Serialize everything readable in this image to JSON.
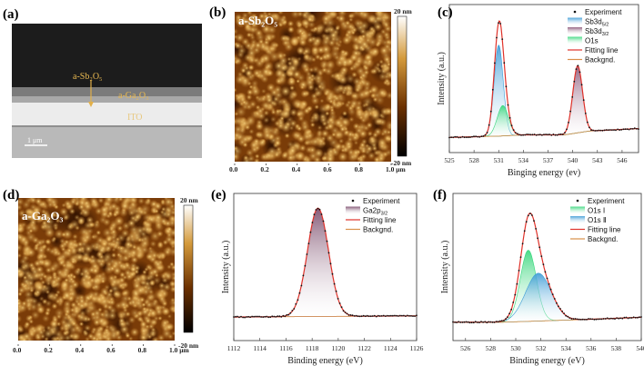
{
  "panels": {
    "a": {
      "label": "(a)",
      "layer_top": "a-Sb₂O₅",
      "layer_mid": "a-Ga₂O₃",
      "layer_bottom": "ITO",
      "scale_bar": "1 μm"
    },
    "b": {
      "label": "(b)",
      "title": "a-Sb₂O₅",
      "cbar_max": "20 nm",
      "cbar_min": "-20 nm",
      "xticks": [
        "0.0",
        "0.2",
        "0.4",
        "0.6",
        "0.8",
        "1.0 μm"
      ]
    },
    "d": {
      "label": "(d)",
      "title": "a-Ga₂O₃",
      "cbar_max": "20 nm",
      "cbar_min": "-20 nm",
      "xticks": [
        "0.0",
        "0.2",
        "0.4",
        "0.6",
        "0.8",
        "1.0 μm"
      ]
    },
    "c": {
      "label": "(c)"
    },
    "e": {
      "label": "(e)"
    },
    "f": {
      "label": "(f)"
    }
  },
  "colors": {
    "fit": "#e0322a",
    "background": "#d9904a",
    "experiment": "#111111",
    "afm_dark": "#7a3c08",
    "afm_light": "#f3c46a"
  },
  "chart_data": [
    {
      "id": "c",
      "type": "line",
      "xlabel": "Binging energy (ev)",
      "ylabel": "Intensity (a.u.)",
      "xlim": [
        525,
        548
      ],
      "ylim": [
        -0.12,
        1.05
      ],
      "xticks": [
        525,
        528,
        531,
        534,
        537,
        540,
        543,
        546
      ],
      "legend_position": "top-right",
      "background_line": {
        "x": [
          525,
          531,
          534,
          539,
          542,
          548
        ],
        "y": [
          0.0,
          0.01,
          0.02,
          0.02,
          0.05,
          0.07
        ]
      },
      "components": [
        {
          "name": "Sb3d",
          "sub": "5/2",
          "center": 531.0,
          "height": 0.72,
          "fwhm": 1.3,
          "color": "#3b9bd6"
        },
        {
          "name": "Sb3d",
          "sub": "3/2",
          "center": 540.6,
          "height": 0.53,
          "fwhm": 1.4,
          "color": "#8a5577"
        },
        {
          "name": "O1s",
          "sub": "",
          "center": 531.5,
          "height": 0.24,
          "fwhm": 1.6,
          "color": "#35d67a"
        }
      ],
      "legend": [
        {
          "kind": "dot",
          "label": "Experiment",
          "sub": ""
        },
        {
          "kind": "fill",
          "comp": 0,
          "label": "Sb3d",
          "sub": "5/2"
        },
        {
          "kind": "fill",
          "comp": 1,
          "label": "Sb3d",
          "sub": "3/2"
        },
        {
          "kind": "fill",
          "comp": 2,
          "label": "O1s",
          "sub": ""
        },
        {
          "kind": "fit",
          "label": "Fitting line",
          "sub": ""
        },
        {
          "kind": "bg",
          "label": "Backgnd.",
          "sub": ""
        }
      ]
    },
    {
      "id": "e",
      "type": "line",
      "xlabel": "Binding energy (eV)",
      "ylabel": "Intensity (a.u.)",
      "xlim": [
        1112,
        1126
      ],
      "ylim": [
        -0.2,
        1.05
      ],
      "xticks": [
        1112,
        1114,
        1116,
        1118,
        1120,
        1122,
        1124,
        1126
      ],
      "legend_position": "top-right",
      "background_line": {
        "x": [
          1112,
          1126
        ],
        "y": [
          0.0,
          0.01
        ]
      },
      "components": [
        {
          "name": "Ga2p",
          "sub": "3/2",
          "center": 1118.45,
          "height": 0.92,
          "fwhm": 1.9,
          "color": "#7a4a6a"
        }
      ],
      "legend": [
        {
          "kind": "dot",
          "label": "Experiment",
          "sub": ""
        },
        {
          "kind": "fill",
          "comp": 0,
          "label": "Ga2p",
          "sub": "3/2"
        },
        {
          "kind": "fit",
          "label": "Fitting line",
          "sub": ""
        },
        {
          "kind": "bg",
          "label": "Backgnd.",
          "sub": ""
        }
      ]
    },
    {
      "id": "f",
      "type": "line",
      "xlabel": "Binding energy (eV)",
      "ylabel": "Intensity (a.u.)",
      "xlim": [
        525,
        540
      ],
      "ylim": [
        -0.15,
        1.05
      ],
      "xticks": [
        526,
        528,
        530,
        532,
        534,
        536,
        538,
        540
      ],
      "legend_position": "top-right",
      "background_line": {
        "x": [
          525,
          529,
          535,
          540
        ],
        "y": [
          0.0,
          0.0,
          0.02,
          0.04
        ]
      },
      "components": [
        {
          "name": "O1s Ⅰ",
          "sub": "",
          "center": 531.0,
          "height": 0.58,
          "fwhm": 1.5,
          "color": "#35d67a"
        },
        {
          "name": "O1s Ⅱ",
          "sub": "",
          "center": 531.8,
          "height": 0.39,
          "fwhm": 2.4,
          "color": "#3b9bd6"
        }
      ],
      "legend": [
        {
          "kind": "dot",
          "label": "Experiment",
          "sub": ""
        },
        {
          "kind": "fill",
          "comp": 0,
          "label": "O1s Ⅰ",
          "sub": ""
        },
        {
          "kind": "fill",
          "comp": 1,
          "label": "O1s Ⅱ",
          "sub": ""
        },
        {
          "kind": "fit",
          "label": "Fitting line",
          "sub": ""
        },
        {
          "kind": "bg",
          "label": "Backgnd.",
          "sub": ""
        }
      ]
    }
  ]
}
